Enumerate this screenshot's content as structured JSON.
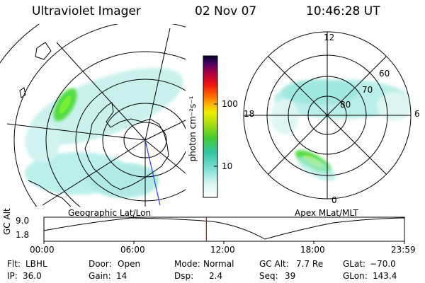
{
  "header": {
    "title": "Ultraviolet Imager",
    "date": "02 Nov 07",
    "time": "10:46:28 UT"
  },
  "left_panel": {
    "label": "Geographic Lat/Lon"
  },
  "right_panel": {
    "label": "Apex MLat/MLT",
    "mlt_labels": {
      "top": "12",
      "left": "18",
      "right": "6",
      "bottom": "0"
    },
    "lat_labels": [
      "60",
      "70",
      "80"
    ]
  },
  "colorbar": {
    "unit": "photon cm⁻²s⁻¹",
    "ticks": [
      {
        "label": "100",
        "value": 100
      },
      {
        "label": "10",
        "value": 10
      }
    ]
  },
  "colors": {
    "emission": "#6ee0d8",
    "bright": "#44cc22",
    "marker": "#e00000",
    "trace": "#2a3aff"
  },
  "timeline": {
    "ylabel": "GC Alt",
    "ytick_labels": [
      "9.0",
      "1.8"
    ],
    "xtick_labels": [
      "00:00",
      "06:00",
      "12:00",
      "18:00",
      "23:59"
    ],
    "current_time_fraction": 0.4506
  },
  "status": {
    "row1": [
      {
        "key": "Flt:",
        "value": "LBHL"
      },
      {
        "key": "Door:",
        "value": "Open"
      },
      {
        "key": "Mode:",
        "value": "Normal"
      },
      {
        "key": "GC Alt:",
        "value": "7.7 Re"
      },
      {
        "key": "GLat:",
        "value": "−70.0"
      }
    ],
    "row2": [
      {
        "key": "IP:",
        "value": "36.0"
      },
      {
        "key": "Gain:",
        "value": "14"
      },
      {
        "key": "Dsp:",
        "value": "2.4"
      },
      {
        "key": "Seq:",
        "value": "39"
      },
      {
        "key": "GLon:",
        "value": "143.4"
      }
    ]
  }
}
